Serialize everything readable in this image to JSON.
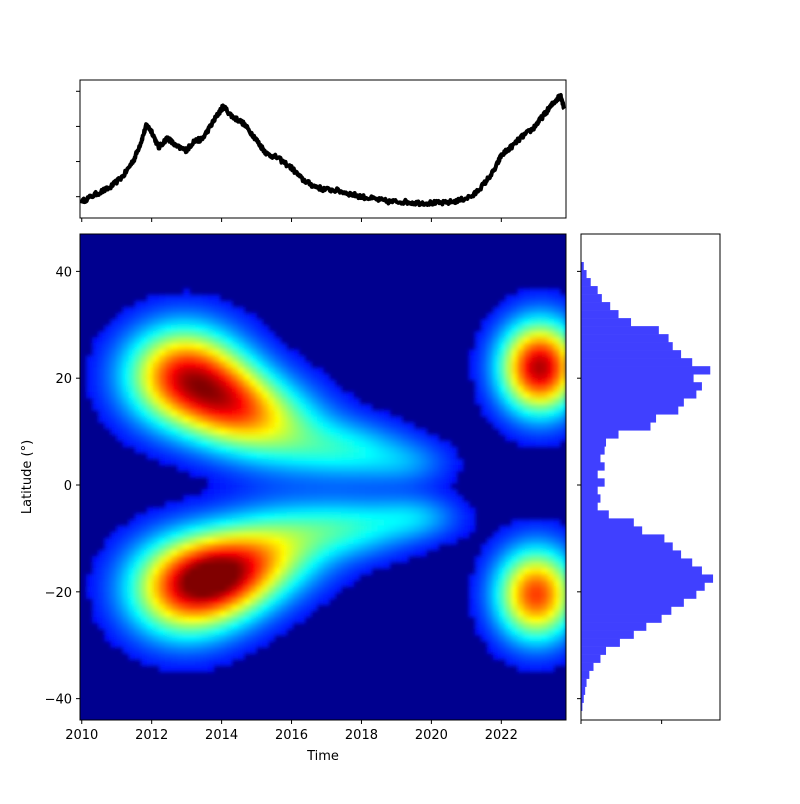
{
  "chart_data": [
    {
      "id": "top",
      "type": "line",
      "title": "",
      "xlabel": "",
      "ylabel": "",
      "xlim": [
        2009.95,
        2023.85
      ],
      "ylim": [
        -0.05,
        1.05
      ],
      "color": "#000000",
      "x": [
        2010.0,
        2010.4,
        2010.8,
        2011.2,
        2011.5,
        2011.7,
        2011.85,
        2012.0,
        2012.2,
        2012.45,
        2012.7,
        2013.0,
        2013.2,
        2013.45,
        2013.7,
        2013.9,
        2014.05,
        2014.3,
        2014.6,
        2014.9,
        2015.1,
        2015.3,
        2015.6,
        2016.0,
        2016.3,
        2016.6,
        2016.9,
        2017.3,
        2017.7,
        2018.0,
        2018.4,
        2018.8,
        2019.2,
        2019.6,
        2020.0,
        2020.4,
        2020.8,
        2021.2,
        2021.5,
        2021.8,
        2022.0,
        2022.3,
        2022.6,
        2022.9,
        2023.1,
        2023.3,
        2023.5,
        2023.7,
        2023.8
      ],
      "values": [
        0.08,
        0.14,
        0.19,
        0.29,
        0.42,
        0.56,
        0.69,
        0.64,
        0.51,
        0.59,
        0.52,
        0.49,
        0.56,
        0.58,
        0.69,
        0.78,
        0.84,
        0.76,
        0.71,
        0.61,
        0.53,
        0.46,
        0.43,
        0.35,
        0.26,
        0.21,
        0.18,
        0.17,
        0.14,
        0.12,
        0.1,
        0.08,
        0.08,
        0.07,
        0.07,
        0.07,
        0.09,
        0.13,
        0.22,
        0.33,
        0.45,
        0.52,
        0.6,
        0.66,
        0.73,
        0.8,
        0.87,
        0.93,
        0.82
      ]
    },
    {
      "id": "main",
      "type": "heatmap",
      "xlabel": "Time",
      "ylabel": "Latitude (°)",
      "xlim": [
        2009.95,
        2023.85
      ],
      "ylim": [
        -44,
        47
      ],
      "xticks": [
        "2010",
        "2012",
        "2014",
        "2016",
        "2018",
        "2020",
        "2022"
      ],
      "yticks": [
        "−40",
        "−20",
        "0",
        "20",
        "40"
      ],
      "colormap": "jet",
      "background": "#00008f",
      "blobs": [
        {
          "t": 2012.9,
          "lat": 20.5,
          "st": 1.15,
          "sl": 6.5,
          "amp": 0.82
        },
        {
          "t": 2014.3,
          "lat": 15.0,
          "st": 1.0,
          "sl": 5.5,
          "amp": 0.5
        },
        {
          "t": 2015.6,
          "lat": 11.0,
          "st": 1.1,
          "sl": 5.5,
          "amp": 0.35
        },
        {
          "t": 2017.6,
          "lat": 6.5,
          "st": 1.2,
          "sl": 4.0,
          "amp": 0.28
        },
        {
          "t": 2019.4,
          "lat": 4.0,
          "st": 0.9,
          "sl": 3.0,
          "amp": 0.14
        },
        {
          "t": 2012.9,
          "lat": -19.5,
          "st": 1.15,
          "sl": 6.5,
          "amp": 0.72
        },
        {
          "t": 2014.2,
          "lat": -16.5,
          "st": 1.05,
          "sl": 5.5,
          "amp": 0.6
        },
        {
          "t": 2015.6,
          "lat": -12.0,
          "st": 1.1,
          "sl": 5.5,
          "amp": 0.38
        },
        {
          "t": 2017.6,
          "lat": -8.0,
          "st": 1.2,
          "sl": 4.0,
          "amp": 0.3
        },
        {
          "t": 2019.6,
          "lat": -6.0,
          "st": 0.9,
          "sl": 3.0,
          "amp": 0.2
        },
        {
          "t": 2023.1,
          "lat": 22.0,
          "st": 0.8,
          "sl": 6.0,
          "amp": 0.95
        },
        {
          "t": 2023.0,
          "lat": -20.5,
          "st": 0.8,
          "sl": 6.0,
          "amp": 0.8
        }
      ]
    },
    {
      "id": "right",
      "type": "bar",
      "orientation": "horizontal",
      "color": "#4040ff",
      "xlim": [
        0,
        1
      ],
      "bin_width": 1.5,
      "lat_centers": [
        41,
        39.5,
        38,
        36.5,
        35,
        33.5,
        32,
        30.5,
        29,
        27.5,
        26,
        24.5,
        23,
        21.5,
        20,
        18.5,
        17,
        15.5,
        14,
        12.5,
        11,
        9.5,
        8,
        6.5,
        5,
        3.5,
        2,
        0.5,
        -1,
        -2.5,
        -4,
        -5.5,
        -7,
        -8.5,
        -10,
        -11.5,
        -13,
        -14.5,
        -16,
        -17.5,
        -19,
        -20.5,
        -22,
        -23.5,
        -25,
        -26.5,
        -28,
        -29.5,
        -31,
        -32.5,
        -34,
        -35.5,
        -37,
        -38.5,
        -40,
        -41.5
      ],
      "values": [
        0.02,
        0.04,
        0.07,
        0.12,
        0.15,
        0.21,
        0.27,
        0.36,
        0.56,
        0.63,
        0.66,
        0.72,
        0.8,
        0.93,
        0.81,
        0.87,
        0.83,
        0.74,
        0.7,
        0.54,
        0.5,
        0.27,
        0.18,
        0.17,
        0.14,
        0.17,
        0.12,
        0.17,
        0.12,
        0.14,
        0.12,
        0.2,
        0.38,
        0.44,
        0.6,
        0.66,
        0.72,
        0.8,
        0.87,
        0.95,
        0.89,
        0.83,
        0.74,
        0.65,
        0.58,
        0.47,
        0.38,
        0.28,
        0.18,
        0.14,
        0.09,
        0.06,
        0.04,
        0.03,
        0.02,
        0.01
      ]
    }
  ]
}
